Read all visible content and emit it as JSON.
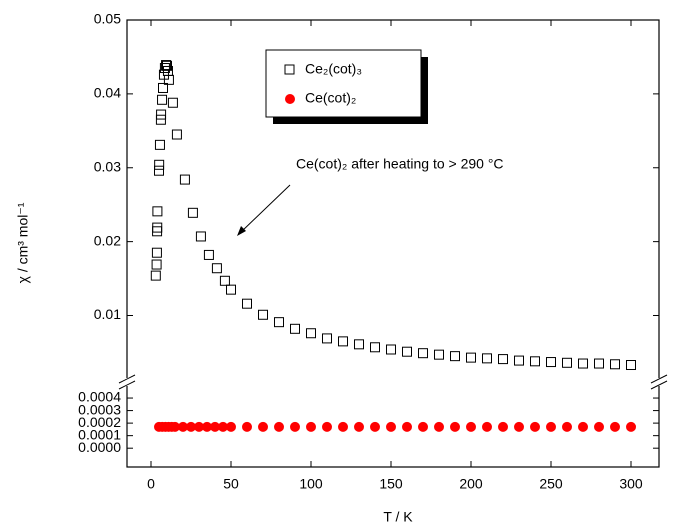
{
  "chart_data": [
    {
      "type": "scatter",
      "ylabel": "χ / cm³ mol⁻¹",
      "annotation": "Ce(cot)₂ after heating to > 290 °C",
      "xlim": [
        -15,
        317.5
      ],
      "ylim": [
        0.001,
        0.05
      ],
      "yticks": [
        0.01,
        0.02,
        0.03,
        0.04,
        0.05
      ],
      "series": [
        {
          "name": "Ce₂(cot)₃",
          "color": "#000000",
          "marker": "open-square",
          "x": [
            3,
            3.5,
            3.7,
            3.8,
            3.9,
            4,
            5,
            5.1,
            5.6,
            6.2,
            6.3,
            6.9,
            7.5,
            8.1,
            8.7,
            9.4,
            10,
            10.6,
            11.2,
            13.7,
            16.2,
            21.2,
            26.2,
            31.2,
            36.2,
            41.2,
            46.2,
            50,
            60,
            70,
            80,
            90,
            100,
            110,
            120,
            130,
            140,
            150,
            160,
            170,
            180,
            190,
            200,
            210,
            220,
            230,
            240,
            250,
            260,
            270,
            280,
            290,
            300
          ],
          "values": [
            0.0154,
            0.0169,
            0.0185,
            0.0214,
            0.0219,
            0.0241,
            0.0296,
            0.0304,
            0.0331,
            0.0365,
            0.0372,
            0.0392,
            0.0408,
            0.0426,
            0.0435,
            0.0439,
            0.0438,
            0.0431,
            0.0419,
            0.0388,
            0.0345,
            0.0284,
            0.0239,
            0.0207,
            0.0182,
            0.0164,
            0.0147,
            0.0135,
            0.0116,
            0.0101,
            0.0091,
            0.0082,
            0.0076,
            0.0069,
            0.0065,
            0.0061,
            0.0057,
            0.0054,
            0.0051,
            0.0049,
            0.0047,
            0.0045,
            0.0043,
            0.0042,
            0.0041,
            0.0039,
            0.0038,
            0.0037,
            0.0036,
            0.0035,
            0.0035,
            0.0034,
            0.0033
          ]
        }
      ]
    },
    {
      "type": "scatter",
      "xlabel": "T / K",
      "xlim": [
        -15,
        317.5
      ],
      "xticks": [
        0,
        50,
        100,
        150,
        200,
        250,
        300
      ],
      "ylim": [
        -0.00015,
        0.00052
      ],
      "yticks": [
        {
          "value": 0,
          "label": "0.0000"
        },
        {
          "value": 0.0001,
          "label": "0.0001"
        },
        {
          "value": 0.0002,
          "label": "0.0002"
        },
        {
          "value": 0.0003,
          "label": "0.0003"
        },
        {
          "value": 0.0004,
          "label": "0.0004"
        }
      ],
      "series": [
        {
          "name": "Ce(cot)₂",
          "color": "#ff0000",
          "marker": "circle",
          "x": [
            5,
            7,
            9,
            11,
            13,
            15,
            20,
            25,
            30,
            35,
            40,
            45,
            50,
            60,
            70,
            80,
            90,
            100,
            110,
            120,
            130,
            140,
            150,
            160,
            170,
            180,
            190,
            200,
            210,
            220,
            230,
            240,
            250,
            260,
            270,
            280,
            290,
            300
          ],
          "values": [
            0.00017,
            0.00017,
            0.00017,
            0.00017,
            0.00017,
            0.00017,
            0.00017,
            0.00017,
            0.00017,
            0.00017,
            0.00017,
            0.00017,
            0.00017,
            0.00017,
            0.00017,
            0.00017,
            0.00017,
            0.00017,
            0.00017,
            0.00017,
            0.00017,
            0.00017,
            0.00017,
            0.00017,
            0.00017,
            0.00017,
            0.00017,
            0.00017,
            0.00017,
            0.00017,
            0.00017,
            0.00017,
            0.00017,
            0.00017,
            0.00017,
            0.00017,
            0.00017,
            0.00017
          ]
        }
      ]
    }
  ]
}
